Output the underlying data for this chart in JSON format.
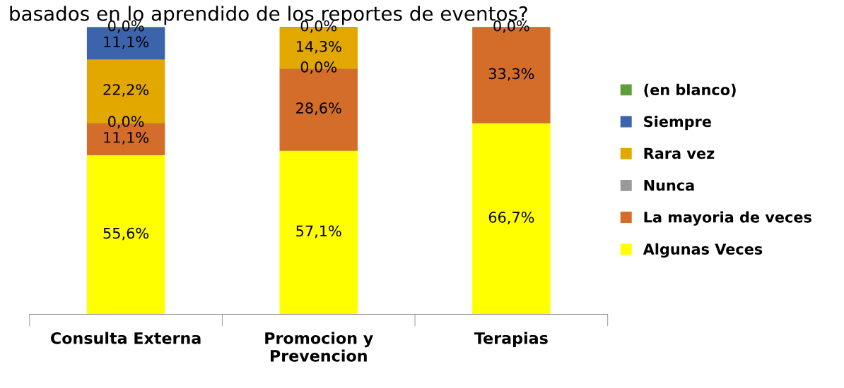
{
  "chart_data": {
    "type": "bar",
    "stacked": true,
    "title": "basados en lo aprendido de los reportes de eventos?",
    "categories": [
      "Consulta Externa",
      "Promocion y\nPrevencion",
      "Terapias"
    ],
    "series": [
      {
        "name": "Algunas Veces",
        "color": "#ffff00",
        "values": [
          55.6,
          57.1,
          66.7
        ],
        "value_labels": [
          "55,6%",
          "57,1%",
          "66,7%"
        ]
      },
      {
        "name": "La mayoria de veces",
        "color": "#d46d2a",
        "values": [
          11.1,
          28.6,
          33.3
        ],
        "value_labels": [
          "11,1%",
          "28,6%",
          "33,3%"
        ]
      },
      {
        "name": "Nunca",
        "color": "#999999",
        "values": [
          0.0,
          0.0,
          null
        ],
        "value_labels": [
          "0,0%",
          "0,0%",
          null
        ]
      },
      {
        "name": "Rara vez",
        "color": "#e2a800",
        "values": [
          22.2,
          14.3,
          null
        ],
        "value_labels": [
          "22,2%",
          "14,3%",
          null
        ]
      },
      {
        "name": "Siempre",
        "color": "#3b64ad",
        "values": [
          11.1,
          null,
          null
        ],
        "value_labels": [
          "11,1%",
          null,
          null
        ]
      },
      {
        "name": "(en blanco)",
        "color": "#5f9e3a",
        "values": [
          0.0,
          0.0,
          0.0
        ],
        "value_labels": [
          "0,0%",
          "0,0%",
          "0,0%"
        ]
      }
    ],
    "legend": "right",
    "grid": false
  }
}
